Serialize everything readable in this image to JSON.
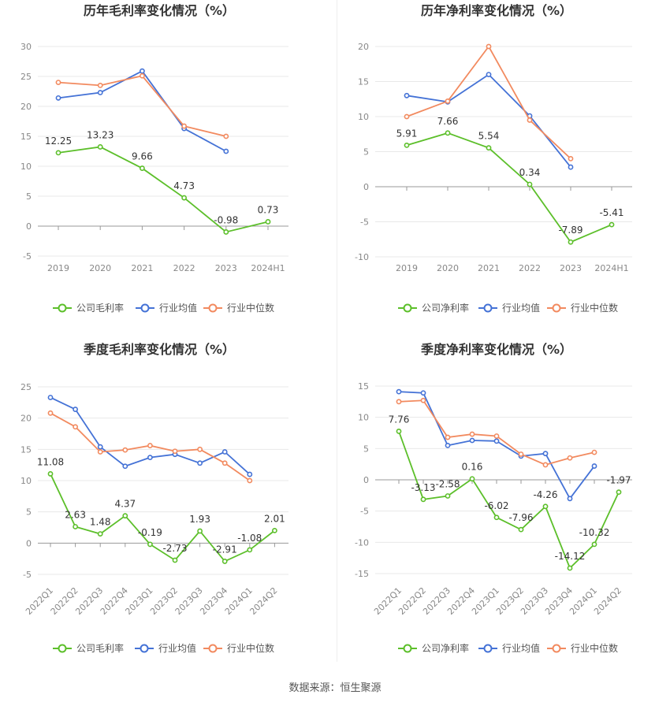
{
  "source_label": "数据来源：恒生聚源",
  "colors": {
    "company": "#5cbf2a",
    "industry_avg": "#4472d6",
    "industry_median": "#f28a5f",
    "grid": "#e8e8e8",
    "axis_text": "#888888",
    "title": "#333333",
    "label": "#333333"
  },
  "chart_data": [
    {
      "type": "line",
      "title": "历年毛利率变化情况（%）",
      "categories": [
        "2019",
        "2020",
        "2021",
        "2022",
        "2023",
        "2024H1"
      ],
      "ylim": [
        -5,
        30
      ],
      "yticks": [
        -5,
        0,
        5,
        10,
        15,
        20,
        25,
        30
      ],
      "tick_rotation": 0,
      "grid": true,
      "legend": "bottom",
      "series": [
        {
          "name": "公司毛利率",
          "key": "company",
          "labels": true,
          "values": [
            12.25,
            13.23,
            9.66,
            4.73,
            -0.98,
            0.73
          ]
        },
        {
          "name": "行业均值",
          "key": "industry_avg",
          "labels": false,
          "values": [
            21.4,
            22.3,
            25.9,
            16.3,
            12.5,
            null
          ]
        },
        {
          "name": "行业中位数",
          "key": "industry_median",
          "labels": false,
          "values": [
            24.0,
            23.5,
            25.1,
            16.7,
            15.0,
            null
          ]
        }
      ]
    },
    {
      "type": "line",
      "title": "历年净利率变化情况（%）",
      "categories": [
        "2019",
        "2020",
        "2021",
        "2022",
        "2023",
        "2024H1"
      ],
      "ylim": [
        -10,
        20
      ],
      "yticks": [
        -10,
        -5,
        0,
        5,
        10,
        15,
        20
      ],
      "tick_rotation": 0,
      "grid": true,
      "legend": "bottom",
      "series": [
        {
          "name": "公司净利率",
          "key": "company",
          "labels": true,
          "values": [
            5.91,
            7.66,
            5.54,
            0.34,
            -7.89,
            -5.41
          ]
        },
        {
          "name": "行业均值",
          "key": "industry_avg",
          "labels": false,
          "values": [
            13.0,
            12.1,
            16.0,
            10.1,
            2.8,
            null
          ]
        },
        {
          "name": "行业中位数",
          "key": "industry_median",
          "labels": false,
          "values": [
            10.0,
            12.2,
            20.0,
            9.5,
            4.0,
            null
          ]
        }
      ]
    },
    {
      "type": "line",
      "title": "季度毛利率变化情况（%）",
      "categories": [
        "2022Q1",
        "2022Q2",
        "2022Q3",
        "2022Q4",
        "2023Q1",
        "2023Q2",
        "2023Q3",
        "2023Q4",
        "2024Q1",
        "2024Q2"
      ],
      "ylim": [
        -5,
        25
      ],
      "yticks": [
        -5,
        0,
        5,
        10,
        15,
        20,
        25
      ],
      "tick_rotation": -45,
      "grid": true,
      "legend": "bottom",
      "series": [
        {
          "name": "公司毛利率",
          "key": "company",
          "labels": true,
          "values": [
            11.08,
            2.63,
            1.48,
            4.37,
            -0.19,
            -2.73,
            1.93,
            -2.91,
            -1.08,
            2.01
          ]
        },
        {
          "name": "行业均值",
          "key": "industry_avg",
          "labels": false,
          "values": [
            23.3,
            21.4,
            15.4,
            12.3,
            13.7,
            14.2,
            12.8,
            14.6,
            11.0,
            null
          ]
        },
        {
          "name": "行业中位数",
          "key": "industry_median",
          "labels": false,
          "values": [
            20.8,
            18.6,
            14.6,
            14.9,
            15.6,
            14.7,
            15.0,
            12.8,
            10.0,
            null
          ]
        }
      ]
    },
    {
      "type": "line",
      "title": "季度净利率变化情况（%）",
      "categories": [
        "2022Q1",
        "2022Q2",
        "2022Q3",
        "2022Q4",
        "2023Q1",
        "2023Q2",
        "2023Q3",
        "2023Q4",
        "2024Q1",
        "2024Q2"
      ],
      "ylim": [
        -15,
        15
      ],
      "yticks": [
        -15,
        -10,
        -5,
        0,
        5,
        10,
        15
      ],
      "tick_rotation": -45,
      "grid": true,
      "legend": "bottom",
      "series": [
        {
          "name": "公司净利率",
          "key": "company",
          "labels": true,
          "values": [
            7.76,
            -3.13,
            -2.58,
            0.16,
            -6.02,
            -7.96,
            -4.26,
            -14.12,
            -10.32,
            -1.97
          ]
        },
        {
          "name": "行业均值",
          "key": "industry_avg",
          "labels": false,
          "values": [
            14.1,
            13.9,
            5.5,
            6.3,
            6.2,
            3.8,
            4.2,
            -3.0,
            2.2,
            null
          ]
        },
        {
          "name": "行业中位数",
          "key": "industry_median",
          "labels": false,
          "values": [
            12.5,
            12.7,
            6.8,
            7.3,
            7.0,
            4.1,
            2.4,
            3.5,
            4.4,
            null
          ]
        }
      ]
    }
  ]
}
